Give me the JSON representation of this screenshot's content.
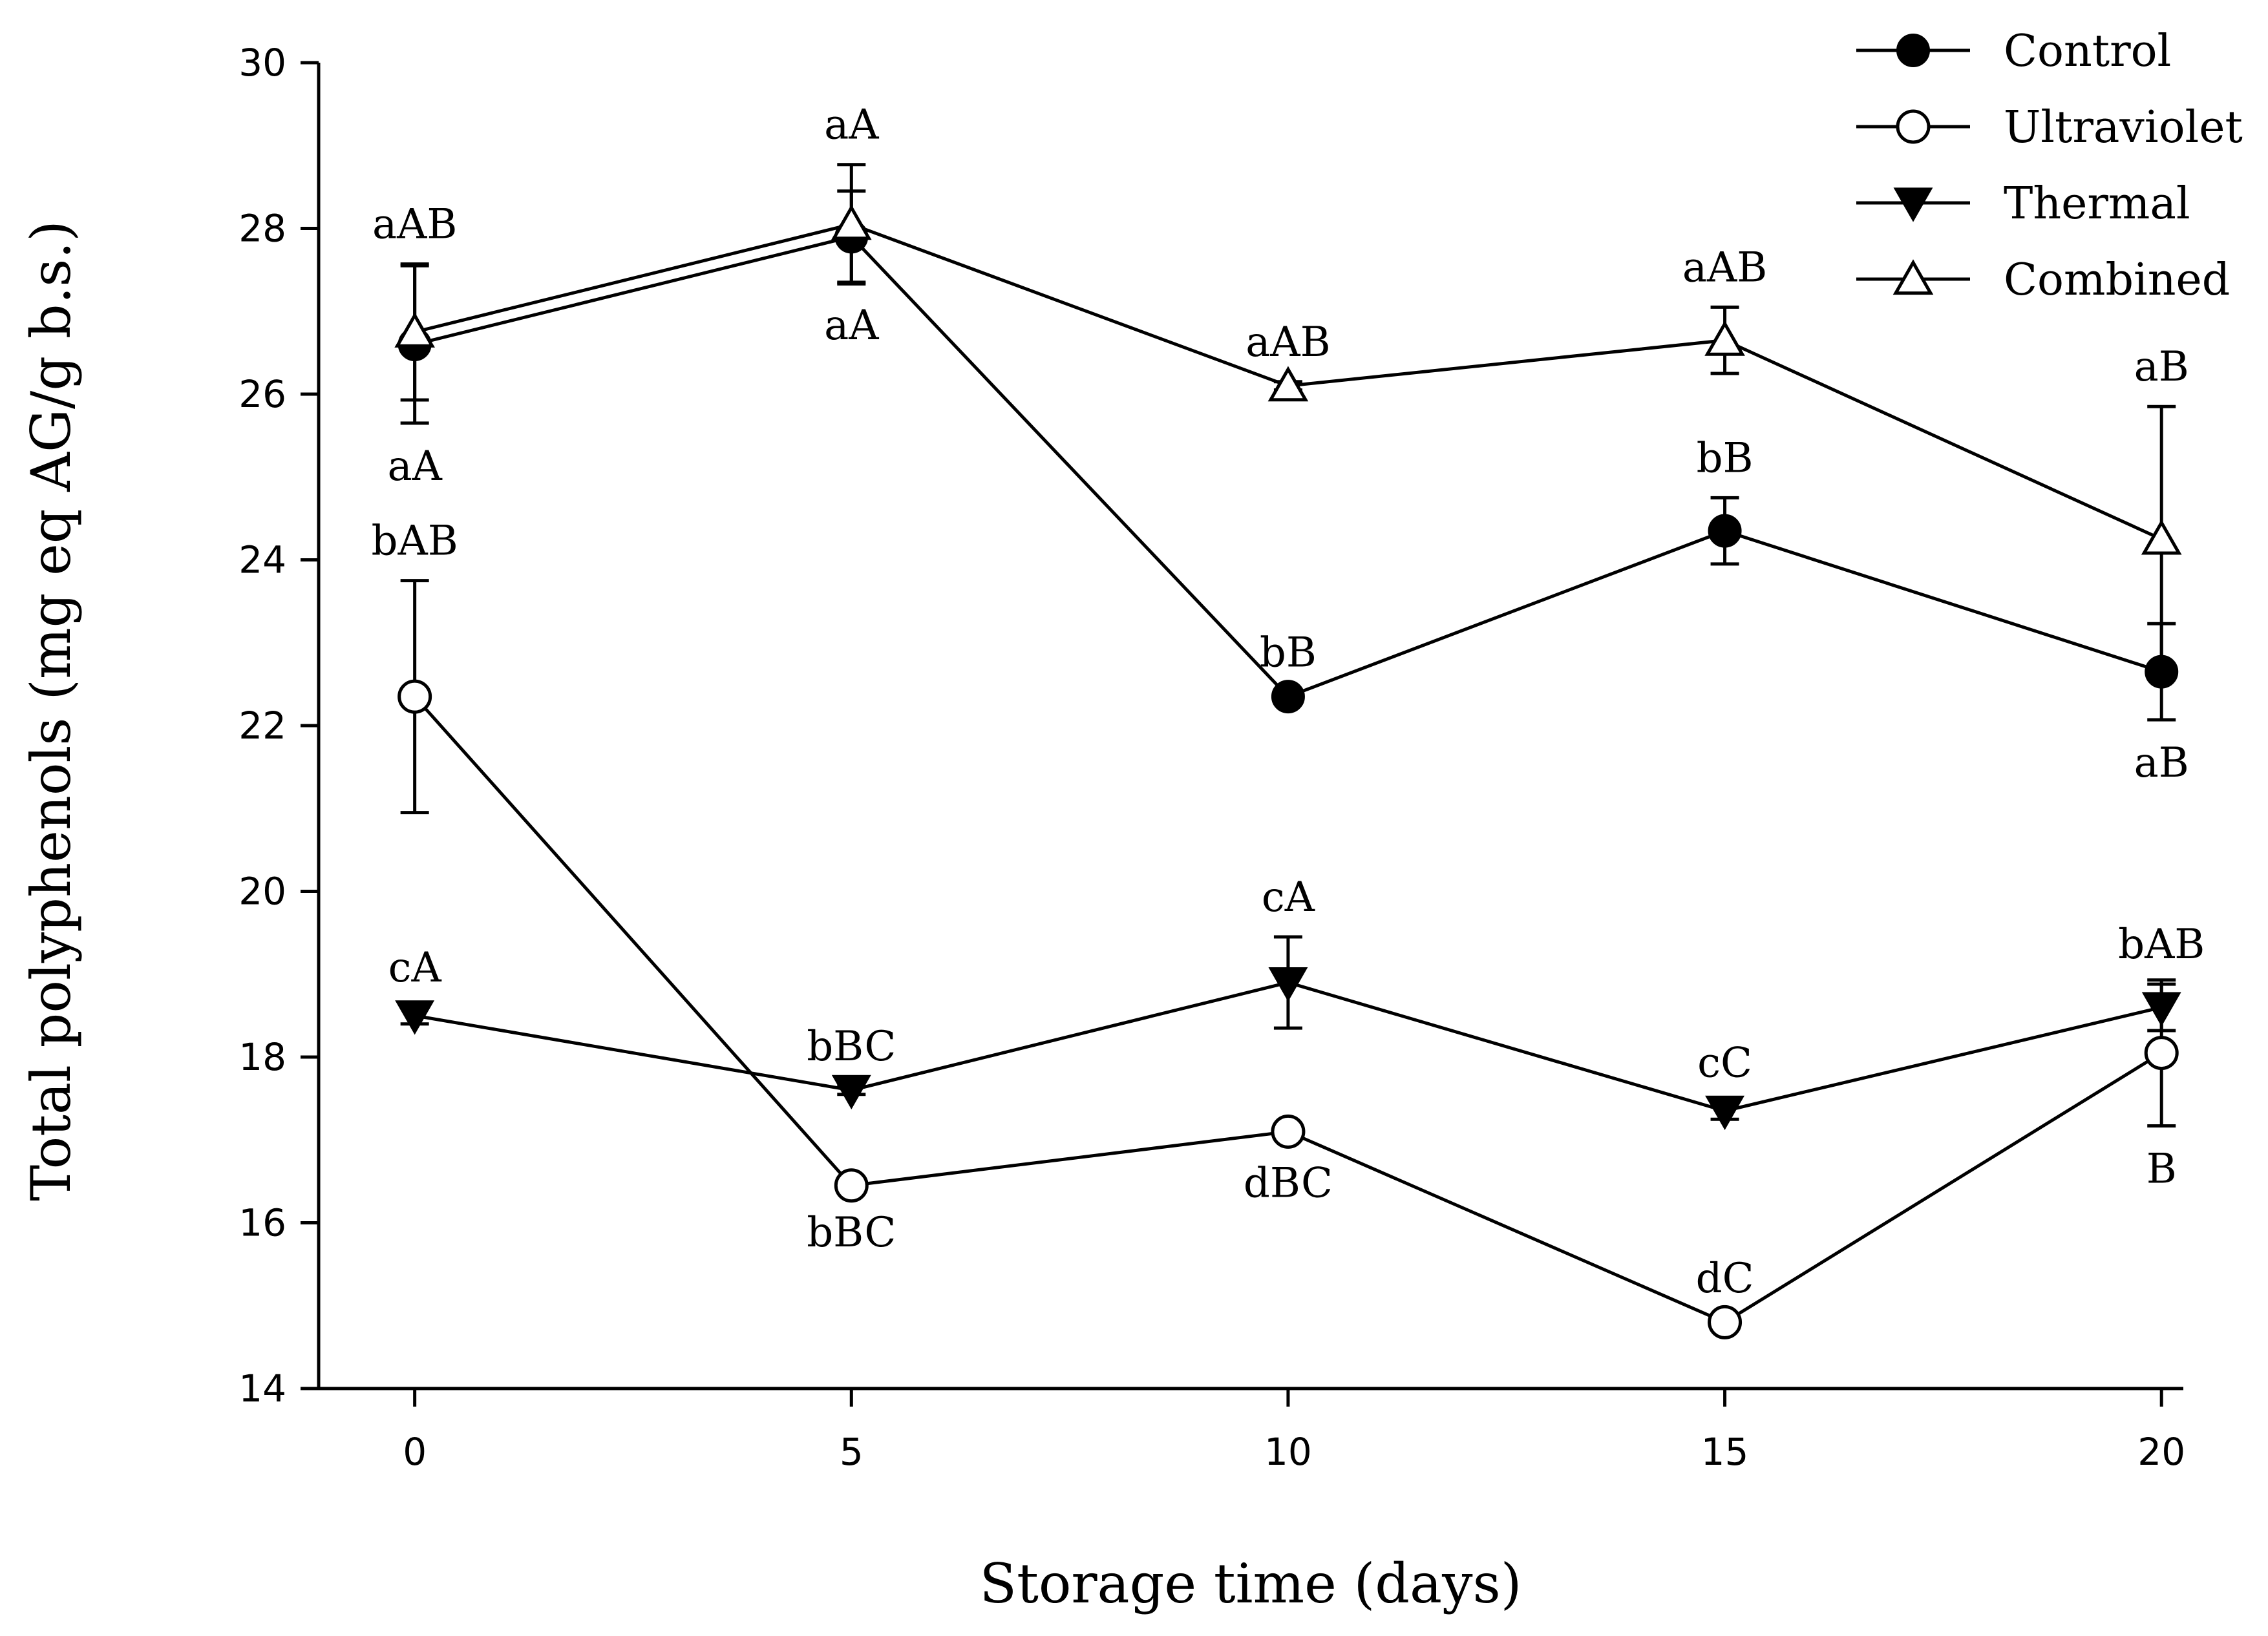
{
  "chart_data": {
    "type": "line",
    "xlabel": "Storage time (days)",
    "ylabel": "Total polyphenols (mg eq AG/g  b.s.)",
    "xlim": [
      -1.1,
      20.25
    ],
    "ylim": [
      14,
      30
    ],
    "x_ticks": [
      0,
      5,
      10,
      15,
      20
    ],
    "y_ticks": [
      14,
      16,
      18,
      20,
      22,
      24,
      26,
      28,
      30
    ],
    "x": [
      0,
      5,
      10,
      15,
      20
    ],
    "legend_position": "top-right",
    "series": [
      {
        "name": "Control",
        "marker": "circle-filled",
        "values": [
          26.6,
          27.9,
          22.35,
          24.35,
          22.65
        ],
        "errors": [
          0.95,
          0.55,
          0.05,
          0.4,
          0.58
        ],
        "labels": [
          "aA",
          "aA",
          "bB",
          "bB",
          "aB"
        ],
        "label_side": [
          "below",
          "below",
          "above",
          "above",
          "below"
        ]
      },
      {
        "name": "Ultraviolet",
        "marker": "circle-open",
        "values": [
          22.35,
          16.45,
          17.1,
          14.8,
          18.05
        ],
        "errors": [
          1.4,
          0.05,
          0.1,
          0.05,
          0.88
        ],
        "labels": [
          "bAB",
          "bBC",
          "dBC",
          "dC",
          "B"
        ],
        "label_side": [
          "above",
          "below",
          "below",
          "above",
          "below"
        ]
      },
      {
        "name": "Thermal",
        "marker": "triangle-down-filled",
        "values": [
          18.5,
          17.6,
          18.9,
          17.35,
          18.6
        ],
        "errors": [
          0.1,
          0.05,
          0.55,
          0.1,
          0.28
        ],
        "labels": [
          "cA",
          "bBC",
          "cA",
          "cC",
          "bAB"
        ],
        "label_side": [
          "above",
          "above",
          "above",
          "above",
          "above"
        ]
      },
      {
        "name": "Combined",
        "marker": "triangle-up-open",
        "values": [
          26.75,
          28.05,
          26.1,
          26.65,
          24.25
        ],
        "errors": [
          0.82,
          0.72,
          0.05,
          0.4,
          1.6
        ],
        "labels": [
          "aAB",
          "aA",
          "aAB",
          "aAB",
          "aB"
        ],
        "label_side": [
          "above",
          "above",
          "above",
          "above",
          "above"
        ]
      }
    ]
  }
}
